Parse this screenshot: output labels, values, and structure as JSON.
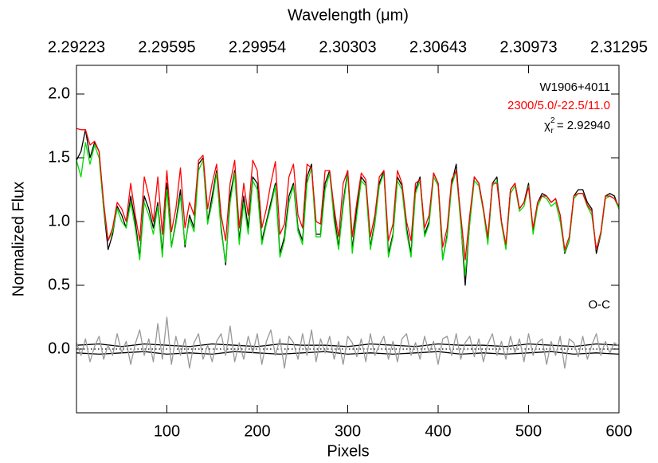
{
  "chart_data": {
    "type": "line",
    "title": "Wavelength (μm)",
    "xlabel": "Pixels",
    "ylabel": "Normalized Flux",
    "xlim": [
      0,
      600
    ],
    "ylim": [
      -0.5,
      2.225
    ],
    "xticks": [
      100,
      200,
      300,
      400,
      500,
      600
    ],
    "yticks": [
      {
        "value": 0,
        "label": "0.0"
      },
      {
        "value": 0.5,
        "label": "0.5"
      },
      {
        "value": 1,
        "label": "1.0"
      },
      {
        "value": 1.5,
        "label": "1.5"
      },
      {
        "value": 2,
        "label": "2.0"
      }
    ],
    "top_axis": {
      "ticks": [
        2.29223,
        2.29595,
        2.29954,
        2.30303,
        2.30643,
        2.30973,
        2.31295
      ]
    },
    "annotations": [
      {
        "text": "W1906+4011",
        "color": "#000000"
      },
      {
        "text": "2300/5.0/-22.5/11.0",
        "color": "#ff0000"
      },
      {
        "symbol": "χ",
        "sup": "2",
        "sub": "r",
        "text": "= 2.92940",
        "color": "#000000"
      },
      {
        "text": "O-C",
        "color": "#000000"
      }
    ],
    "x": [
      0,
      5,
      10,
      15,
      20,
      25,
      30,
      35,
      40,
      45,
      50,
      55,
      60,
      65,
      70,
      75,
      80,
      85,
      90,
      95,
      100,
      105,
      110,
      115,
      120,
      125,
      130,
      135,
      140,
      145,
      150,
      155,
      160,
      165,
      170,
      175,
      180,
      185,
      190,
      195,
      200,
      205,
      210,
      215,
      220,
      225,
      230,
      235,
      240,
      245,
      250,
      255,
      260,
      265,
      270,
      275,
      280,
      285,
      290,
      295,
      300,
      305,
      310,
      315,
      320,
      325,
      330,
      335,
      340,
      345,
      350,
      355,
      360,
      365,
      370,
      375,
      380,
      385,
      390,
      395,
      400,
      405,
      410,
      415,
      420,
      425,
      430,
      435,
      440,
      445,
      450,
      455,
      460,
      465,
      470,
      475,
      480,
      485,
      490,
      495,
      500,
      505,
      510,
      515,
      520,
      525,
      530,
      535,
      540,
      545,
      550,
      555,
      560,
      565,
      570,
      575,
      580,
      585,
      590,
      595,
      600
    ],
    "series": [
      {
        "color": "#000000",
        "values": [
          1.48,
          1.55,
          1.72,
          1.5,
          1.62,
          1.55,
          1.1,
          0.78,
          0.9,
          1.12,
          1.05,
          0.95,
          1.2,
          1.0,
          0.72,
          1.2,
          1.1,
          0.95,
          1.15,
          0.75,
          1.3,
          0.8,
          1.0,
          1.25,
          0.8,
          1.05,
          0.95,
          1.45,
          1.5,
          1.0,
          1.2,
          1.4,
          0.95,
          0.66,
          1.2,
          1.4,
          0.85,
          1.2,
          0.95,
          1.35,
          1.3,
          0.85,
          1.0,
          1.15,
          1.3,
          0.75,
          0.88,
          1.2,
          1.3,
          0.95,
          0.85,
          1.35,
          1.45,
          0.9,
          0.9,
          1.3,
          1.4,
          1.05,
          0.8,
          1.15,
          1.4,
          0.78,
          1.1,
          1.35,
          1.3,
          0.8,
          1.0,
          1.3,
          1.4,
          0.75,
          0.9,
          1.35,
          1.28,
          0.95,
          0.75,
          1.25,
          1.35,
          0.9,
          1.0,
          1.38,
          1.3,
          0.7,
          0.9,
          1.3,
          1.45,
          1.0,
          0.5,
          1.0,
          1.35,
          1.3,
          1.1,
          0.85,
          1.3,
          1.35,
          1.0,
          0.8,
          1.25,
          1.3,
          1.1,
          1.15,
          1.3,
          0.92,
          1.15,
          1.22,
          1.2,
          1.15,
          1.18,
          1.05,
          0.75,
          0.85,
          1.2,
          1.25,
          1.25,
          1.15,
          1.1,
          0.75,
          0.9,
          1.2,
          1.22,
          1.2,
          1.1
        ]
      },
      {
        "color": "#00dd00",
        "values": [
          1.48,
          1.35,
          1.62,
          1.45,
          1.6,
          1.5,
          1.1,
          0.85,
          0.92,
          1.1,
          1.0,
          0.95,
          1.15,
          0.95,
          0.7,
          1.15,
          1.05,
          0.9,
          1.12,
          0.72,
          1.25,
          0.8,
          0.98,
          1.2,
          0.82,
          1.02,
          0.92,
          1.4,
          1.48,
          0.98,
          1.15,
          1.38,
          0.92,
          0.68,
          1.15,
          1.38,
          0.82,
          1.15,
          0.9,
          1.32,
          1.25,
          0.82,
          0.98,
          1.12,
          1.28,
          0.72,
          0.85,
          1.15,
          1.28,
          0.92,
          0.82,
          1.3,
          1.42,
          0.88,
          0.88,
          1.25,
          1.38,
          1.0,
          0.78,
          1.12,
          1.38,
          0.75,
          1.05,
          1.32,
          1.28,
          0.78,
          0.98,
          1.28,
          1.38,
          0.72,
          0.88,
          1.32,
          1.25,
          0.92,
          0.72,
          1.22,
          1.32,
          0.88,
          0.98,
          1.35,
          1.28,
          0.7,
          0.88,
          1.28,
          1.4,
          0.98,
          0.58,
          0.98,
          1.32,
          1.28,
          1.08,
          0.82,
          1.28,
          1.32,
          0.98,
          0.78,
          1.22,
          1.28,
          1.08,
          1.12,
          1.28,
          0.9,
          1.12,
          1.2,
          1.18,
          1.12,
          1.15,
          1.0,
          0.76,
          0.85,
          1.18,
          1.22,
          1.22,
          1.12,
          1.05,
          0.78,
          0.9,
          1.18,
          1.2,
          1.18,
          1.1
        ]
      },
      {
        "color": "#ff0000",
        "values": [
          1.73,
          1.72,
          1.72,
          1.6,
          1.63,
          1.55,
          1.15,
          0.85,
          0.95,
          1.15,
          1.1,
          1.0,
          1.3,
          1.05,
          0.85,
          1.35,
          1.2,
          1.0,
          1.35,
          0.9,
          1.4,
          0.92,
          1.1,
          1.42,
          0.95,
          1.15,
          1.05,
          1.48,
          1.52,
          1.1,
          1.3,
          1.45,
          1.05,
          0.85,
          1.3,
          1.48,
          0.95,
          1.3,
          1.05,
          1.48,
          1.4,
          0.95,
          1.1,
          1.3,
          1.47,
          0.9,
          0.98,
          1.35,
          1.45,
          1.05,
          0.95,
          1.45,
          1.42,
          1.0,
          0.98,
          1.4,
          1.4,
          1.1,
          0.88,
          1.3,
          1.4,
          0.88,
          1.15,
          1.38,
          1.33,
          0.88,
          1.05,
          1.35,
          1.4,
          0.85,
          0.98,
          1.4,
          1.3,
          1.0,
          0.85,
          1.3,
          1.33,
          0.95,
          1.05,
          1.38,
          1.3,
          0.8,
          0.95,
          1.33,
          1.4,
          1.05,
          0.7,
          1.05,
          1.35,
          1.3,
          1.1,
          0.88,
          1.3,
          1.3,
          1.0,
          0.82,
          1.25,
          1.3,
          1.1,
          1.15,
          1.27,
          0.95,
          1.15,
          1.2,
          1.2,
          1.15,
          1.18,
          1.05,
          0.78,
          0.88,
          1.2,
          1.22,
          1.22,
          1.13,
          1.08,
          0.78,
          0.92,
          1.2,
          1.2,
          1.18,
          1.12
        ]
      },
      {
        "color": "#999999",
        "values": [
          0.05,
          -0.05,
          0.08,
          -0.1,
          0.02,
          0.1,
          -0.08,
          0.03,
          -0.05,
          0.12,
          -0.03,
          0.06,
          -0.12,
          0.04,
          0.15,
          -0.05,
          0.08,
          -0.1,
          0.2,
          -0.08,
          0.25,
          -0.12,
          0.1,
          -0.05,
          0.08,
          -0.15,
          0.05,
          0.12,
          -0.08,
          0.03,
          -0.1,
          0.06,
          0.12,
          -0.05,
          0.18,
          -0.1,
          0.05,
          -0.08,
          0.1,
          -0.03,
          0.12,
          -0.12,
          0.06,
          0.15,
          -0.05,
          0.08,
          -0.15,
          0.1,
          0.05,
          -0.08,
          0.12,
          -0.05,
          0.15,
          -0.1,
          0.08,
          -0.03,
          0.1,
          -0.08,
          0.06,
          -0.12,
          0.1,
          0.05,
          -0.06,
          0.08,
          -0.1,
          0.12,
          -0.05,
          0.03,
          0.1,
          -0.08,
          0.06,
          -0.1,
          0.08,
          0.12,
          -0.05,
          0.05,
          -0.08,
          0.1,
          -0.03,
          0.06,
          -0.12,
          0.08,
          0.1,
          -0.05,
          0.12,
          -0.08,
          0.05,
          0.1,
          -0.06,
          0.08,
          -0.1,
          0.04,
          0.12,
          -0.05,
          0.06,
          -0.08,
          0.1,
          -0.03,
          0.08,
          -0.1,
          0.12,
          -0.05,
          0.05,
          0.08,
          -0.12,
          0.06,
          -0.05,
          0.1,
          -0.15,
          0.08,
          0.05,
          -0.06,
          0.1,
          -0.08,
          0.03,
          0.12,
          -0.05,
          0.06,
          -0.03,
          0.05,
          0.02
        ]
      }
    ],
    "band": {
      "color": "#000000",
      "x": [
        0,
        25,
        50,
        75,
        100,
        125,
        150,
        175,
        200,
        225,
        250,
        275,
        300,
        325,
        350,
        375,
        400,
        425,
        450,
        475,
        500,
        525,
        550,
        575,
        600
      ],
      "upper": [
        0.03,
        0.04,
        0.02,
        0.04,
        0.03,
        0.02,
        0.04,
        0.03,
        0.02,
        0.04,
        0.03,
        0.03,
        0.02,
        0.04,
        0.03,
        0.02,
        0.04,
        0.03,
        0.03,
        0.02,
        0.04,
        0.03,
        0.02,
        0.04,
        0.03
      ],
      "lower": [
        -0.03,
        -0.04,
        -0.03,
        -0.02,
        -0.04,
        -0.03,
        -0.04,
        -0.02,
        -0.03,
        -0.04,
        -0.03,
        -0.02,
        -0.04,
        -0.03,
        -0.04,
        -0.03,
        -0.02,
        -0.04,
        -0.03,
        -0.04,
        -0.03,
        -0.02,
        -0.04,
        -0.03,
        -0.04
      ]
    },
    "hline": 0
  }
}
